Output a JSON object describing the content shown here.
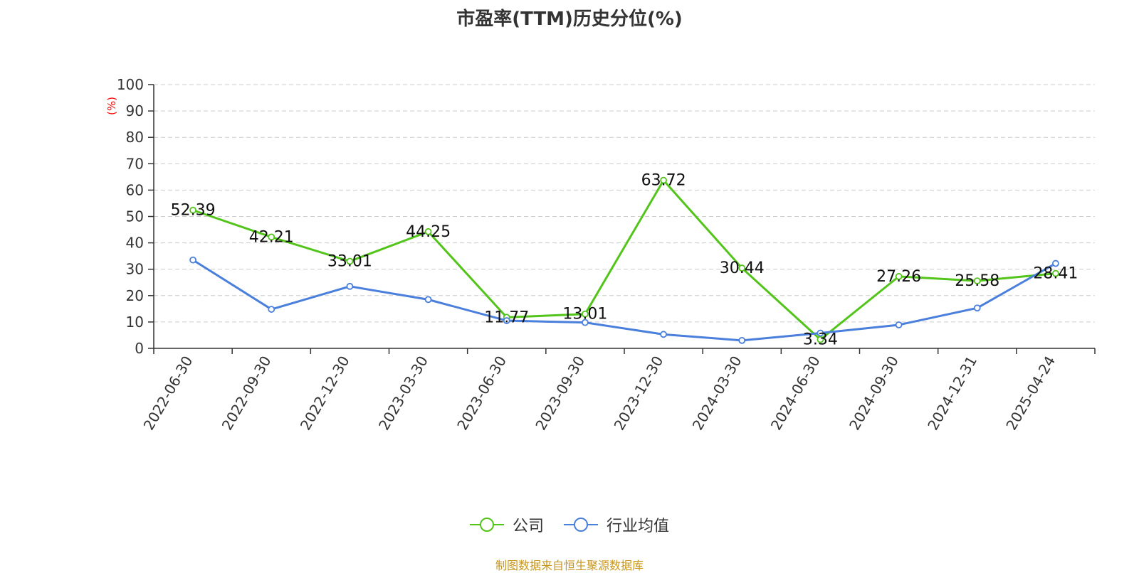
{
  "chart_data": {
    "type": "line",
    "title": "市盈率(TTM)历史分位(%)",
    "ylabel": "(%)",
    "ylim": [
      0,
      100
    ],
    "yticks": [
      0,
      10,
      20,
      30,
      40,
      50,
      60,
      70,
      80,
      90,
      100
    ],
    "categories": [
      "2022-06-30",
      "2022-09-30",
      "2022-12-30",
      "2023-03-30",
      "2023-06-30",
      "2023-09-30",
      "2023-12-30",
      "2024-03-30",
      "2024-06-30",
      "2024-09-30",
      "2024-12-31",
      "2025-04-24"
    ],
    "grid": true,
    "legend_position": "bottom",
    "series": [
      {
        "name": "公司",
        "color": "#52c41a",
        "values": [
          52.39,
          42.21,
          33.01,
          44.25,
          11.77,
          13.01,
          63.72,
          30.44,
          3.34,
          27.26,
          25.58,
          28.41
        ],
        "show_labels": true
      },
      {
        "name": "行业均值",
        "color": "#4a7fdc",
        "values": [
          33.5,
          14.8,
          23.5,
          18.5,
          10.5,
          9.8,
          5.3,
          3.0,
          5.8,
          8.9,
          15.3,
          32.2
        ],
        "show_labels": false
      }
    ]
  },
  "footer": {
    "source": "制图数据来自恒生聚源数据库"
  }
}
